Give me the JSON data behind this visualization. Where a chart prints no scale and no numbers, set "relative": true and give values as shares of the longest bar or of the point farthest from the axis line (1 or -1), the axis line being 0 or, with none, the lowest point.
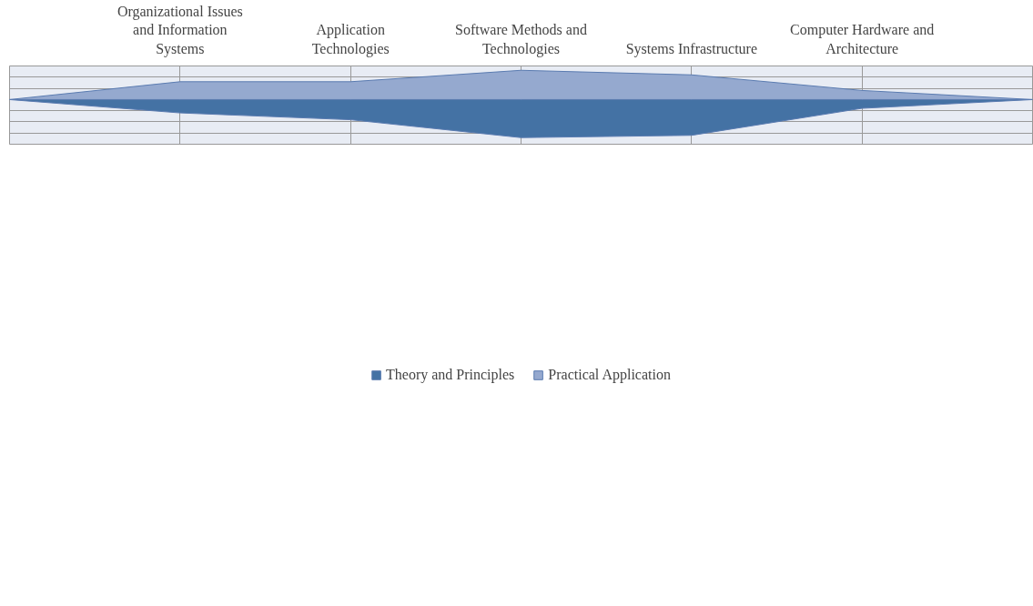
{
  "chart_data": {
    "type": "area",
    "relative": true,
    "grid": true,
    "legend": "bottom",
    "categories": [
      null,
      "Organizational Issues and Information Systems",
      "Application Technologies",
      "Software Methods and Technologies",
      "Systems Infrastructure",
      "Computer Hardware and Architecture",
      null
    ],
    "series": [
      {
        "name": "Theory and Principles",
        "color": "#4472a4",
        "values": [
          0,
          -0.35,
          -0.53,
          -1,
          -0.94,
          -0.23,
          0
        ]
      },
      {
        "name": "Practical Application",
        "color": "#95a9cf",
        "values": [
          0,
          0.47,
          0.47,
          0.77,
          0.65,
          0.24,
          0
        ]
      }
    ]
  }
}
